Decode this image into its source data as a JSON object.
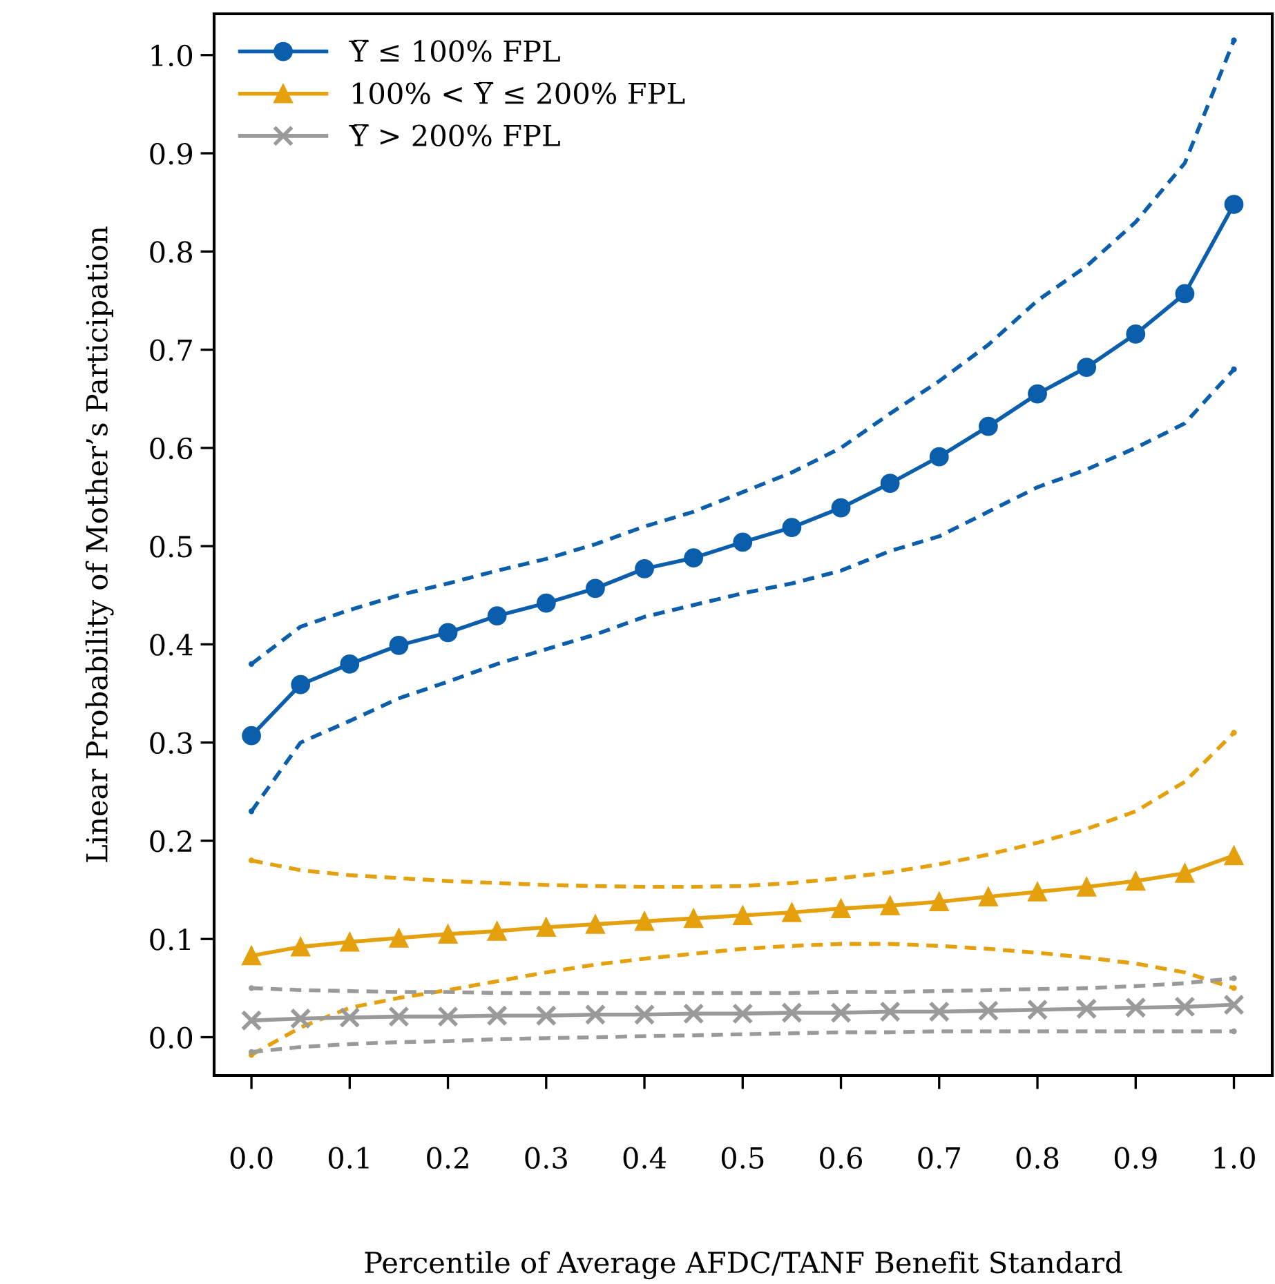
{
  "chart_data": {
    "type": "line",
    "xlabel": "Percentile of Average AFDC/TANF Benefit Standard",
    "ylabel": "Linear Probability of Mother’s Participation",
    "x": [
      0.0,
      0.05,
      0.1,
      0.15,
      0.2,
      0.25,
      0.3,
      0.35,
      0.4,
      0.45,
      0.5,
      0.55,
      0.6,
      0.65,
      0.7,
      0.75,
      0.8,
      0.85,
      0.9,
      0.95,
      1.0
    ],
    "xlim": [
      -0.038,
      1.039
    ],
    "xticks": [
      {
        "value": 0,
        "label": "0.0"
      },
      0.1,
      0.2,
      0.3,
      0.4,
      0.5,
      0.6,
      0.7,
      0.8,
      0.9,
      {
        "value": 1,
        "label": "1.0"
      }
    ],
    "ylim": [
      -0.039,
      1.042
    ],
    "yticks": [
      {
        "value": 0,
        "label": "0.0"
      },
      0.1,
      0.2,
      0.3,
      0.4,
      0.5,
      0.6,
      0.7,
      0.8,
      0.9,
      {
        "value": 1,
        "label": "1.0"
      }
    ],
    "grid": false,
    "legend": "top left",
    "series": [
      {
        "name": "Y̅ ≤ 100% FPL",
        "color": "#0a5eab",
        "marker": "circle",
        "line_style": "solid",
        "values": [
          0.307,
          0.359,
          0.38,
          0.399,
          0.412,
          0.429,
          0.442,
          0.457,
          0.477,
          0.488,
          0.504,
          0.519,
          0.539,
          0.564,
          0.591,
          0.622,
          0.655,
          0.682,
          0.716,
          0.757,
          0.848
        ]
      },
      {
        "color": "#0a5eab",
        "marker": "none",
        "line_style": "dashed",
        "values": [
          0.38,
          0.418,
          0.435,
          0.45,
          0.462,
          0.475,
          0.487,
          0.502,
          0.52,
          0.535,
          0.555,
          0.575,
          0.6,
          0.635,
          0.668,
          0.705,
          0.75,
          0.785,
          0.83,
          0.89,
          1.015
        ]
      },
      {
        "color": "#0a5eab",
        "marker": "none",
        "line_style": "dashed",
        "values": [
          0.23,
          0.3,
          0.322,
          0.345,
          0.362,
          0.38,
          0.395,
          0.41,
          0.428,
          0.44,
          0.452,
          0.462,
          0.475,
          0.495,
          0.51,
          0.535,
          0.56,
          0.578,
          0.6,
          0.625,
          0.68
        ]
      },
      {
        "name": "100% < Y̅ ≤ 200% FPL",
        "color": "#e5a00d",
        "marker": "triangle",
        "line_style": "solid",
        "values": [
          0.083,
          0.092,
          0.097,
          0.101,
          0.105,
          0.108,
          0.112,
          0.115,
          0.118,
          0.121,
          0.124,
          0.127,
          0.131,
          0.134,
          0.138,
          0.143,
          0.148,
          0.153,
          0.159,
          0.167,
          0.185
        ]
      },
      {
        "color": "#e5a00d",
        "marker": "none",
        "line_style": "dashed",
        "values": [
          0.18,
          0.17,
          0.165,
          0.162,
          0.159,
          0.157,
          0.155,
          0.154,
          0.153,
          0.153,
          0.154,
          0.157,
          0.162,
          0.168,
          0.176,
          0.186,
          0.198,
          0.212,
          0.23,
          0.26,
          0.31
        ]
      },
      {
        "color": "#e5a00d",
        "marker": "none",
        "line_style": "dashed",
        "values": [
          -0.018,
          0.01,
          0.03,
          0.04,
          0.048,
          0.057,
          0.066,
          0.074,
          0.08,
          0.085,
          0.09,
          0.093,
          0.095,
          0.095,
          0.093,
          0.09,
          0.086,
          0.081,
          0.075,
          0.066,
          0.05
        ]
      },
      {
        "name": "Y̅ > 200% FPL",
        "color": "#9a9a9a",
        "marker": "cross",
        "line_style": "solid",
        "values": [
          0.017,
          0.019,
          0.02,
          0.021,
          0.021,
          0.022,
          0.022,
          0.023,
          0.023,
          0.024,
          0.024,
          0.025,
          0.025,
          0.026,
          0.026,
          0.027,
          0.028,
          0.029,
          0.03,
          0.031,
          0.033
        ]
      },
      {
        "color": "#9a9a9a",
        "marker": "none",
        "line_style": "dashed",
        "values": [
          0.05,
          0.048,
          0.047,
          0.046,
          0.046,
          0.045,
          0.045,
          0.045,
          0.045,
          0.045,
          0.045,
          0.045,
          0.046,
          0.046,
          0.047,
          0.048,
          0.049,
          0.05,
          0.052,
          0.055,
          0.06
        ]
      },
      {
        "color": "#9a9a9a",
        "marker": "none",
        "line_style": "dashed",
        "values": [
          -0.015,
          -0.01,
          -0.007,
          -0.005,
          -0.004,
          -0.002,
          -0.001,
          0.0,
          0.001,
          0.002,
          0.003,
          0.004,
          0.005,
          0.005,
          0.006,
          0.006,
          0.006,
          0.006,
          0.006,
          0.006,
          0.006
        ]
      }
    ]
  }
}
